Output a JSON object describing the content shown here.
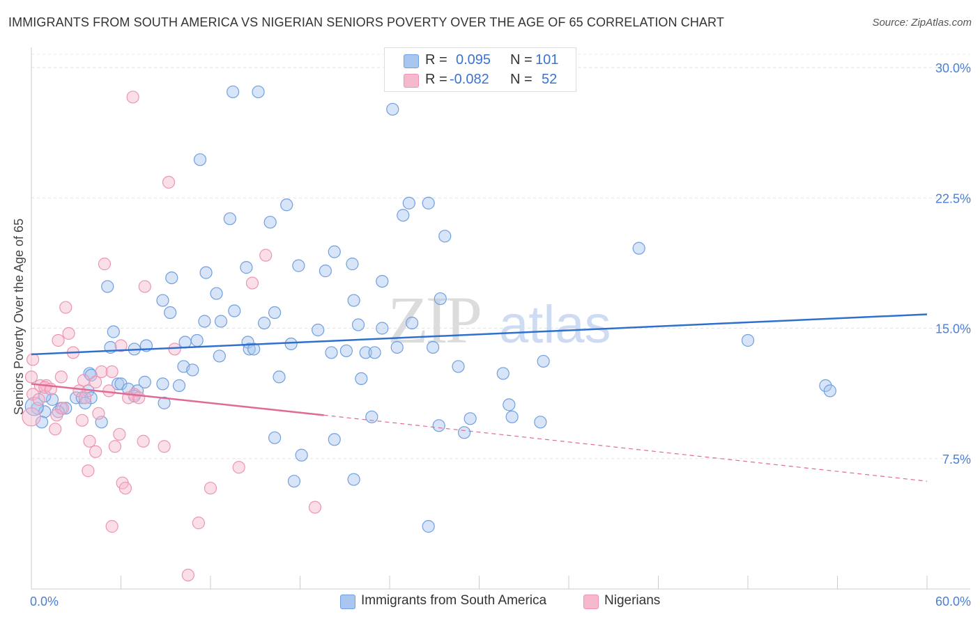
{
  "title": "IMMIGRANTS FROM SOUTH AMERICA VS NIGERIAN SENIORS POVERTY OVER THE AGE OF 65 CORRELATION CHART",
  "source": "Source: ZipAtlas.com",
  "watermark": {
    "zip": "ZIP",
    "atlas": "atlas"
  },
  "legend": {
    "rows": [
      {
        "r_label": "R =",
        "r_value": "0.095",
        "n_label": "N =",
        "n_value": "101",
        "color": "#a8c6f0"
      },
      {
        "r_label": "R =",
        "r_value": "-0.082",
        "n_label": "N =",
        "n_value": "52",
        "color": "#f6b8cc"
      }
    ]
  },
  "bottom_legend": [
    {
      "label": "Immigrants from South America",
      "color": "#a8c6f0"
    },
    {
      "label": "Nigerians",
      "color": "#f6b8cc"
    }
  ],
  "chart_data": {
    "type": "scatter",
    "xlabel": "",
    "ylabel": "Seniors Poverty Over the Age of 65",
    "xlim": [
      0,
      60
    ],
    "ylim": [
      0,
      31.5
    ],
    "x_tick_labels": [
      "0.0%",
      "60.0%"
    ],
    "y_ticks": [
      7.5,
      15.0,
      22.5,
      30.0
    ],
    "y_tick_labels": [
      "7.5%",
      "15.0%",
      "22.5%",
      "30.0%"
    ],
    "grid": true,
    "series": [
      {
        "name": "Immigrants from South America",
        "color": "#6f9fe0",
        "fill": "#a8c6f0",
        "trend": {
          "x0": 0,
          "y0": 13.5,
          "x1": 60,
          "y1": 15.8,
          "color": "#2f6fce"
        },
        "points": [
          [
            13.5,
            28.6
          ],
          [
            15.2,
            28.6
          ],
          [
            24.2,
            27.6
          ],
          [
            11.3,
            24.7
          ],
          [
            17.1,
            22.1
          ],
          [
            25.3,
            22.2
          ],
          [
            26.6,
            22.2
          ],
          [
            24.9,
            21.5
          ],
          [
            13.3,
            21.3
          ],
          [
            16.0,
            21.1
          ],
          [
            20.3,
            19.4
          ],
          [
            40.7,
            19.6
          ],
          [
            27.7,
            20.3
          ],
          [
            21.5,
            18.7
          ],
          [
            14.4,
            18.5
          ],
          [
            17.9,
            18.6
          ],
          [
            19.7,
            18.3
          ],
          [
            11.7,
            18.2
          ],
          [
            9.4,
            17.9
          ],
          [
            23.5,
            17.7
          ],
          [
            5.1,
            17.4
          ],
          [
            12.4,
            17.0
          ],
          [
            8.8,
            16.6
          ],
          [
            21.6,
            16.6
          ],
          [
            27.4,
            16.7
          ],
          [
            9.3,
            15.9
          ],
          [
            13.6,
            16.0
          ],
          [
            16.3,
            15.9
          ],
          [
            12.7,
            15.4
          ],
          [
            11.6,
            15.4
          ],
          [
            15.6,
            15.3
          ],
          [
            21.9,
            15.2
          ],
          [
            23.5,
            15.0
          ],
          [
            25.5,
            15.3
          ],
          [
            19.2,
            14.9
          ],
          [
            5.5,
            14.8
          ],
          [
            10.3,
            14.2
          ],
          [
            11.1,
            14.3
          ],
          [
            14.5,
            14.2
          ],
          [
            17.4,
            14.1
          ],
          [
            48.0,
            14.3
          ],
          [
            5.3,
            13.9
          ],
          [
            6.9,
            13.8
          ],
          [
            7.7,
            14.0
          ],
          [
            14.6,
            13.8
          ],
          [
            14.9,
            13.8
          ],
          [
            20.1,
            13.6
          ],
          [
            21.1,
            13.7
          ],
          [
            22.4,
            13.6
          ],
          [
            23.0,
            13.6
          ],
          [
            24.5,
            13.9
          ],
          [
            26.9,
            13.9
          ],
          [
            12.6,
            13.4
          ],
          [
            10.2,
            12.8
          ],
          [
            10.8,
            12.6
          ],
          [
            28.6,
            12.8
          ],
          [
            34.3,
            13.1
          ],
          [
            3.9,
            12.4
          ],
          [
            4.0,
            12.3
          ],
          [
            16.6,
            12.2
          ],
          [
            22.1,
            12.1
          ],
          [
            31.6,
            12.4
          ],
          [
            7.6,
            11.9
          ],
          [
            5.8,
            11.8
          ],
          [
            6.0,
            11.8
          ],
          [
            8.8,
            11.8
          ],
          [
            9.9,
            11.7
          ],
          [
            3.8,
            11.4
          ],
          [
            6.5,
            11.5
          ],
          [
            7.1,
            11.4
          ],
          [
            53.2,
            11.7
          ],
          [
            53.5,
            11.4
          ],
          [
            3.0,
            11.0
          ],
          [
            3.4,
            11.0
          ],
          [
            4.0,
            11.0
          ],
          [
            6.9,
            11.1
          ],
          [
            0.4,
            10.4
          ],
          [
            1.4,
            10.9
          ],
          [
            3.6,
            10.7
          ],
          [
            8.9,
            10.7
          ],
          [
            2.0,
            10.4
          ],
          [
            2.3,
            10.4
          ],
          [
            0.9,
            10.2
          ],
          [
            1.8,
            10.2
          ],
          [
            32.0,
            10.6
          ],
          [
            22.8,
            9.9
          ],
          [
            29.4,
            9.8
          ],
          [
            32.2,
            9.9
          ],
          [
            34.1,
            9.6
          ],
          [
            0.7,
            9.6
          ],
          [
            4.7,
            9.6
          ],
          [
            27.3,
            9.4
          ],
          [
            29.0,
            9.0
          ],
          [
            16.3,
            8.7
          ],
          [
            20.3,
            8.6
          ],
          [
            18.1,
            7.7
          ],
          [
            17.6,
            6.2
          ],
          [
            21.6,
            6.3
          ],
          [
            26.6,
            3.6
          ],
          [
            0.2,
            10.5
          ],
          [
            0.9,
            11.1
          ]
        ]
      },
      {
        "name": "Nigerians",
        "color": "#ee94b2",
        "fill": "#f6b8cc",
        "trend": {
          "x0": 0,
          "y0": 11.8,
          "x1": 19.6,
          "y1": 10.0,
          "color": "#e06a94",
          "dash_to_x": 60,
          "dash_to_y": 6.2
        },
        "points": [
          [
            6.8,
            28.3
          ],
          [
            9.2,
            23.4
          ],
          [
            15.7,
            19.2
          ],
          [
            4.9,
            18.7
          ],
          [
            14.8,
            17.6
          ],
          [
            7.6,
            17.4
          ],
          [
            2.3,
            16.2
          ],
          [
            2.5,
            14.7
          ],
          [
            1.8,
            14.3
          ],
          [
            6.0,
            14.0
          ],
          [
            9.6,
            13.8
          ],
          [
            2.8,
            13.6
          ],
          [
            0.1,
            13.2
          ],
          [
            4.7,
            12.5
          ],
          [
            5.4,
            12.5
          ],
          [
            0.0,
            12.2
          ],
          [
            2.0,
            12.2
          ],
          [
            3.5,
            12.0
          ],
          [
            4.3,
            11.9
          ],
          [
            0.6,
            11.7
          ],
          [
            1.0,
            11.7
          ],
          [
            0.9,
            11.6
          ],
          [
            1.3,
            11.5
          ],
          [
            3.2,
            11.4
          ],
          [
            5.2,
            11.4
          ],
          [
            0.1,
            11.2
          ],
          [
            6.9,
            11.2
          ],
          [
            6.5,
            11.0
          ],
          [
            7.2,
            11.0
          ],
          [
            3.6,
            11.0
          ],
          [
            0.5,
            10.9
          ],
          [
            2.1,
            10.4
          ],
          [
            4.5,
            10.1
          ],
          [
            1.7,
            10.0
          ],
          [
            3.4,
            9.7
          ],
          [
            5.9,
            8.9
          ],
          [
            7.5,
            8.5
          ],
          [
            3.9,
            8.5
          ],
          [
            5.6,
            8.2
          ],
          [
            8.9,
            8.2
          ],
          [
            1.6,
            9.2
          ],
          [
            4.3,
            7.9
          ],
          [
            13.9,
            7.0
          ],
          [
            3.8,
            6.8
          ],
          [
            6.1,
            6.1
          ],
          [
            6.3,
            5.8
          ],
          [
            12.0,
            5.8
          ],
          [
            19.0,
            4.7
          ],
          [
            11.2,
            3.8
          ],
          [
            5.4,
            3.6
          ],
          [
            10.5,
            0.8
          ],
          [
            0.0,
            9.9
          ]
        ]
      }
    ]
  }
}
